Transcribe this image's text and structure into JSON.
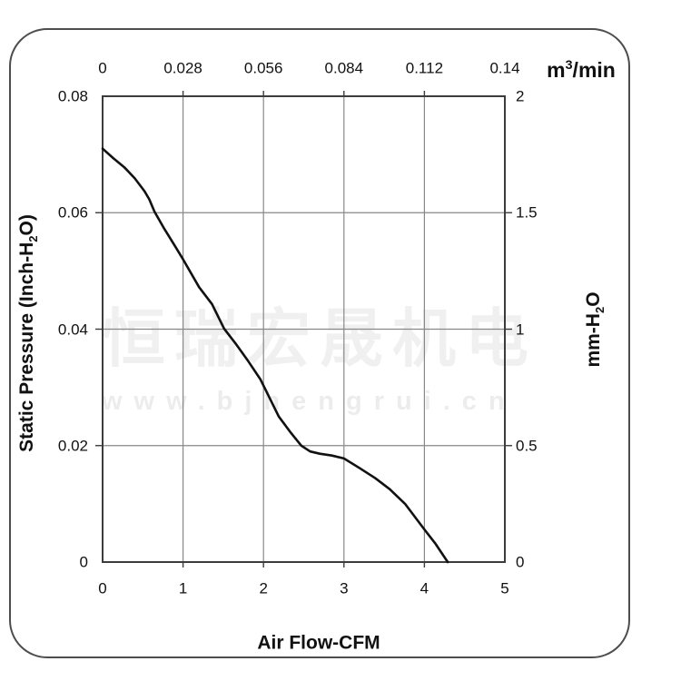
{
  "watermark": {
    "line1": "恒瑞宏晟机电",
    "line2": "www.bjhengrui.cn"
  },
  "colors": {
    "curve": "#111111",
    "frame": "#3c3c3c",
    "grid": "#888888",
    "text": "#111111",
    "border": "#4d4d4d",
    "background": "#ffffff"
  },
  "chart_data": {
    "type": "line",
    "title": "",
    "grid": true,
    "x_axis_bottom": {
      "label": "Air Flow-CFM",
      "ticks": [
        "0",
        "1",
        "2",
        "3",
        "4",
        "5"
      ],
      "range": [
        0,
        5
      ]
    },
    "x_axis_top": {
      "unit_parts": {
        "pre": "m",
        "sup": "3",
        "post": "/min"
      },
      "ticks": [
        "0",
        "0.028",
        "0.056",
        "0.084",
        "0.112",
        "0.14"
      ],
      "range": [
        0,
        0.14
      ]
    },
    "y_axis_left": {
      "label_parts": {
        "pre": "Static Pressure (Inch-H",
        "sub": "2",
        "post": "O)"
      },
      "ticks": [
        "0.08",
        "0.06",
        "0.04",
        "0.02",
        "0"
      ],
      "range": [
        0,
        0.08
      ]
    },
    "y_axis_right": {
      "label_parts": {
        "pre": "mm-H",
        "sub": "2",
        "post": "O"
      },
      "ticks": [
        "2",
        "1.5",
        "1",
        "0.5",
        "0"
      ],
      "range": [
        0,
        2
      ]
    },
    "series": [
      {
        "name": "static-pressure-vs-airflow",
        "color": "#111111",
        "points": [
          [
            0.0,
            0.071
          ],
          [
            0.13,
            0.0694
          ],
          [
            0.27,
            0.0678
          ],
          [
            0.4,
            0.0659
          ],
          [
            0.52,
            0.0637
          ],
          [
            0.58,
            0.0623
          ],
          [
            0.645,
            0.0602
          ],
          [
            0.76,
            0.0574
          ],
          [
            0.88,
            0.0547
          ],
          [
            1.0,
            0.052
          ],
          [
            1.2,
            0.0472
          ],
          [
            1.36,
            0.0443
          ],
          [
            1.51,
            0.0401
          ],
          [
            1.66,
            0.0374
          ],
          [
            1.81,
            0.0345
          ],
          [
            1.96,
            0.0314
          ],
          [
            2.19,
            0.025
          ],
          [
            2.34,
            0.0222
          ],
          [
            2.47,
            0.02
          ],
          [
            2.58,
            0.019
          ],
          [
            2.7,
            0.0186
          ],
          [
            2.85,
            0.0183
          ],
          [
            3.0,
            0.0178
          ],
          [
            3.2,
            0.0161
          ],
          [
            3.39,
            0.0144
          ],
          [
            3.57,
            0.0125
          ],
          [
            3.76,
            0.01
          ],
          [
            4.0,
            0.0056
          ],
          [
            4.14,
            0.0031
          ],
          [
            4.29,
            0.0
          ]
        ]
      }
    ]
  }
}
